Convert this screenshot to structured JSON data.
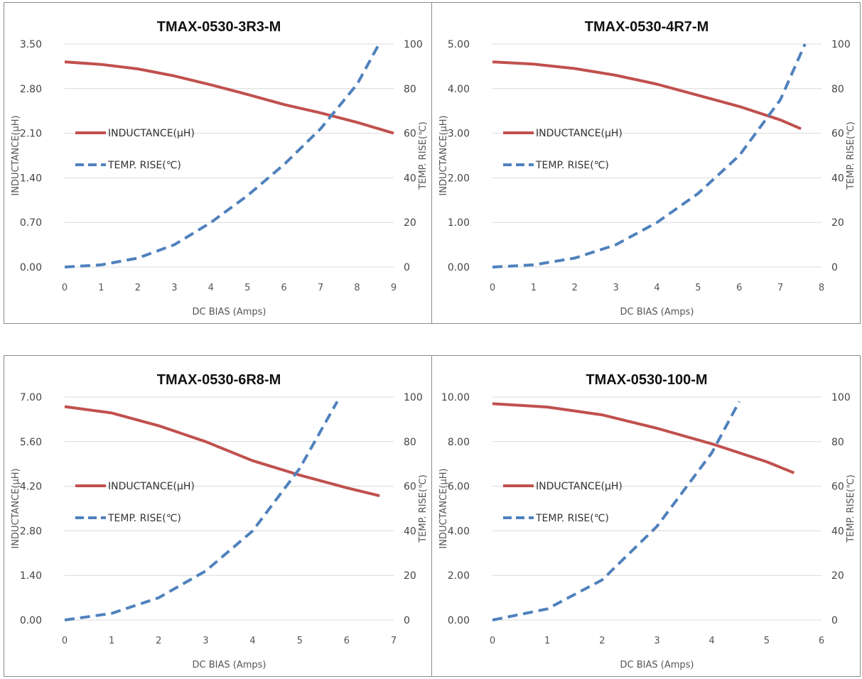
{
  "chart_data": [
    {
      "type": "line",
      "title": "TMAX-0530-3R3-M",
      "xlabel": "DC BIAS  (Amps)",
      "ylabel_left": "INDUCTANCE(μH)",
      "ylabel_right": "TEMP. RISE(℃)",
      "x_ticks": [
        "0",
        "1",
        "2",
        "3",
        "4",
        "5",
        "6",
        "7",
        "8",
        "9"
      ],
      "y_left_ticks": [
        "0.00",
        "0.70",
        "1.40",
        "2.10",
        "2.80",
        "3.50"
      ],
      "y_right_ticks": [
        "0",
        "20",
        "40",
        "60",
        "80",
        "100"
      ],
      "xlim": [
        0,
        9
      ],
      "ylim_left": [
        0,
        3.5
      ],
      "ylim_right": [
        0,
        100
      ],
      "grid": "horizontal",
      "legend_position": "center-left",
      "series": [
        {
          "name": "INDUCTANCE(μH)",
          "axis": "left",
          "style": "solid",
          "color": "#c0504d",
          "x": [
            0,
            1,
            2,
            3,
            4,
            5,
            6,
            7,
            8,
            9
          ],
          "y": [
            3.22,
            3.18,
            3.11,
            3.0,
            2.86,
            2.71,
            2.55,
            2.42,
            2.27,
            2.1
          ]
        },
        {
          "name": "TEMP. RISE(℃)",
          "axis": "right",
          "style": "dashed",
          "color": "#4f81bd",
          "x": [
            0,
            1,
            2,
            3,
            4,
            5,
            6,
            7,
            8,
            8.6
          ],
          "y": [
            0,
            1,
            4,
            10,
            20,
            32,
            46,
            62,
            82,
            100
          ]
        }
      ]
    },
    {
      "type": "line",
      "title": "TMAX-0530-4R7-M",
      "xlabel": "DC BIAS  (Amps)",
      "ylabel_left": "INDUCTANCE(μH)",
      "ylabel_right": "TEMP. RISE(℃)",
      "x_ticks": [
        "0",
        "1",
        "2",
        "3",
        "4",
        "5",
        "6",
        "7",
        "8"
      ],
      "y_left_ticks": [
        "0.00",
        "1.00",
        "2.00",
        "3.00",
        "4.00",
        "5.00"
      ],
      "y_right_ticks": [
        "0",
        "20",
        "40",
        "60",
        "80",
        "100"
      ],
      "xlim": [
        0,
        8
      ],
      "ylim_left": [
        0,
        5
      ],
      "ylim_right": [
        0,
        100
      ],
      "grid": "horizontal",
      "legend_position": "center-left",
      "series": [
        {
          "name": "INDUCTANCE(μH)",
          "axis": "left",
          "style": "solid",
          "color": "#c0504d",
          "x": [
            0,
            1,
            2,
            3,
            4,
            5,
            6,
            7,
            7.5
          ],
          "y": [
            4.6,
            4.55,
            4.45,
            4.3,
            4.1,
            3.85,
            3.6,
            3.3,
            3.1
          ]
        },
        {
          "name": "TEMP. RISE(℃)",
          "axis": "right",
          "style": "dashed",
          "color": "#4f81bd",
          "x": [
            0,
            1,
            2,
            3,
            4,
            5,
            6,
            7,
            7.6
          ],
          "y": [
            0,
            1,
            4,
            10,
            20,
            33,
            50,
            75,
            100
          ]
        }
      ]
    },
    {
      "type": "line",
      "title": "TMAX-0530-6R8-M",
      "xlabel": "DC BIAS  (Amps)",
      "ylabel_left": "INDUCTANCE(μH)",
      "ylabel_right": "TEMP. RISE(℃)",
      "x_ticks": [
        "0",
        "1",
        "2",
        "3",
        "4",
        "5",
        "6",
        "7"
      ],
      "y_left_ticks": [
        "0.00",
        "1.40",
        "2.80",
        "4.20",
        "5.60",
        "7.00"
      ],
      "y_right_ticks": [
        "0",
        "20",
        "40",
        "60",
        "80",
        "100"
      ],
      "xlim": [
        0,
        7
      ],
      "ylim_left": [
        0,
        7
      ],
      "ylim_right": [
        0,
        100
      ],
      "grid": "horizontal",
      "legend_position": "center-left",
      "series": [
        {
          "name": "INDUCTANCE(μH)",
          "axis": "left",
          "style": "solid",
          "color": "#c0504d",
          "x": [
            0,
            1,
            2,
            3,
            4,
            5,
            6,
            6.7
          ],
          "y": [
            6.7,
            6.5,
            6.1,
            5.6,
            5.0,
            4.55,
            4.15,
            3.9
          ]
        },
        {
          "name": "TEMP. RISE(℃)",
          "axis": "right",
          "style": "dashed",
          "color": "#4f81bd",
          "x": [
            0,
            1,
            2,
            3,
            4,
            5,
            5.8
          ],
          "y": [
            0,
            3,
            10,
            22,
            40,
            68,
            98
          ]
        }
      ]
    },
    {
      "type": "line",
      "title": "TMAX-0530-100-M",
      "xlabel": "DC BIAS  (Amps)",
      "ylabel_left": "INDUCTANCE(μH)",
      "ylabel_right": "TEMP. RISE(℃)",
      "x_ticks": [
        "0",
        "1",
        "2",
        "3",
        "4",
        "5",
        "6"
      ],
      "y_left_ticks": [
        "0.00",
        "2.00",
        "4.00",
        "6.00",
        "8.00",
        "10.00"
      ],
      "y_right_ticks": [
        "0",
        "20",
        "40",
        "60",
        "80",
        "100"
      ],
      "xlim": [
        0,
        6
      ],
      "ylim_left": [
        0,
        10
      ],
      "ylim_right": [
        0,
        100
      ],
      "grid": "horizontal",
      "legend_position": "center-left",
      "series": [
        {
          "name": "INDUCTANCE(μH)",
          "axis": "left",
          "style": "solid",
          "color": "#c0504d",
          "x": [
            0,
            1,
            2,
            3,
            4,
            5,
            5.5
          ],
          "y": [
            9.7,
            9.55,
            9.2,
            8.6,
            7.9,
            7.1,
            6.6
          ]
        },
        {
          "name": "TEMP. RISE(℃)",
          "axis": "right",
          "style": "dashed",
          "color": "#4f81bd",
          "x": [
            0,
            1,
            2,
            3,
            4,
            4.5
          ],
          "y": [
            0,
            5,
            18,
            42,
            75,
            98
          ]
        }
      ]
    }
  ]
}
